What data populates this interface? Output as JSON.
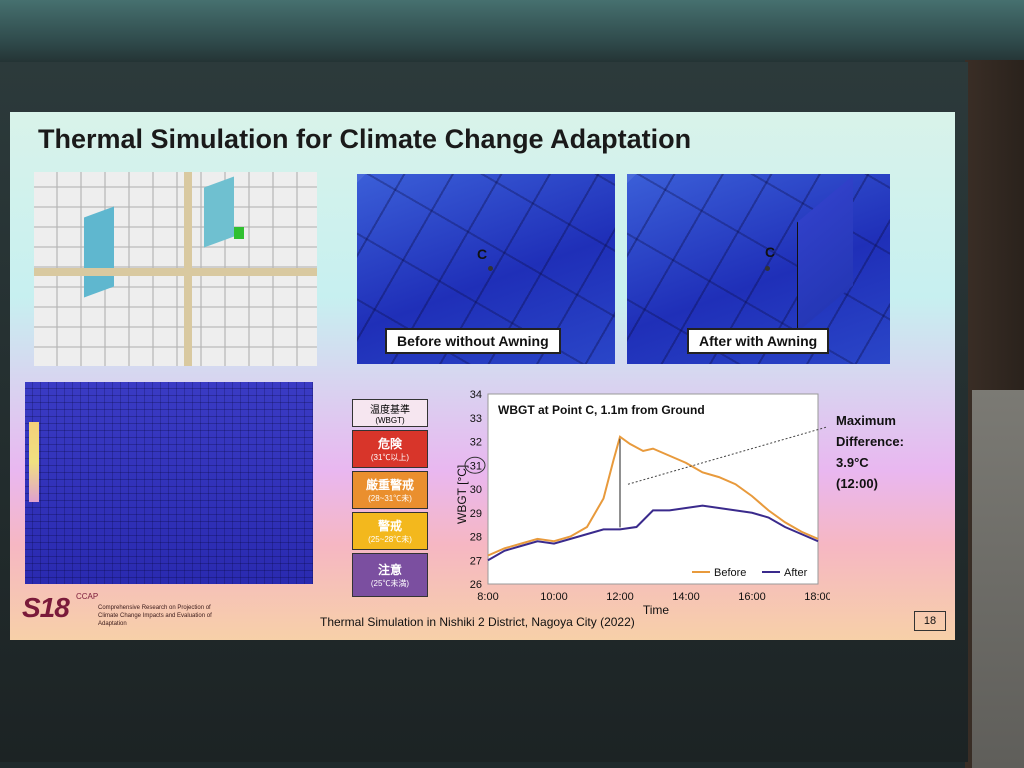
{
  "slide": {
    "title": "Thermal Simulation for Climate Change Adaptation",
    "footer": "Thermal Simulation in Nishiki 2 District, Nagoya City (2022)",
    "page_number": "18",
    "logo_text": "S18",
    "logo_side": "CCAP",
    "project_text": "Comprehensive Research on Projection of Climate Change Impacts and Evaluation of Adaptation"
  },
  "panels": {
    "before_caption": "Before without Awning",
    "after_caption": "After  with Awning",
    "point_label": "C"
  },
  "legend": {
    "header": "温度基準",
    "header_sub": "(WBGT)",
    "levels": [
      {
        "label": "危険",
        "range": "(31℃以上)",
        "color": "#d8352a"
      },
      {
        "label": "厳重警戒",
        "range": "(28~31℃未)",
        "color": "#ea8f2e"
      },
      {
        "label": "警戒",
        "range": "(25~28℃未)",
        "color": "#f3b81d"
      },
      {
        "label": "注意",
        "range": "(25℃未満)",
        "color": "#7b4fa0"
      }
    ]
  },
  "annotation": {
    "line1": "Maximum",
    "line2": "Difference:",
    "line3": "3.9°C",
    "line4": "(12:00)"
  },
  "chart_data": {
    "type": "line",
    "title": "WBGT at Point C, 1.1m from Ground",
    "xlabel": "Time",
    "ylabel": "WBGT [°C]",
    "xticks": [
      "8:00",
      "10:00",
      "12:00",
      "14:00",
      "16:00",
      "18:00"
    ],
    "yticks": [
      26,
      27,
      28,
      29,
      30,
      31,
      32,
      33,
      34
    ],
    "xlim": [
      8,
      18
    ],
    "ylim": [
      26,
      34
    ],
    "highlighted_ytick": 31,
    "legend_position": "bottom-right",
    "series": [
      {
        "name": "Before",
        "color": "#e89a3c",
        "x": [
          8,
          8.5,
          9,
          9.5,
          10,
          10.5,
          11,
          11.5,
          11.8,
          12,
          12.3,
          12.7,
          13,
          13.5,
          14,
          14.5,
          15,
          15.5,
          16,
          16.5,
          17,
          17.5,
          18
        ],
        "y": [
          27.2,
          27.5,
          27.7,
          27.9,
          27.8,
          28.0,
          28.4,
          29.6,
          31.2,
          32.2,
          31.9,
          31.6,
          31.7,
          31.4,
          31.1,
          30.7,
          30.5,
          30.2,
          29.7,
          29.1,
          28.6,
          28.2,
          27.9
        ]
      },
      {
        "name": "After",
        "color": "#3a2a8c",
        "x": [
          8,
          8.5,
          9,
          9.5,
          10,
          10.5,
          11,
          11.5,
          12,
          12.5,
          13,
          13.5,
          14,
          14.5,
          15,
          15.5,
          16,
          16.5,
          17,
          17.5,
          18
        ],
        "y": [
          27.0,
          27.4,
          27.6,
          27.8,
          27.7,
          27.9,
          28.1,
          28.3,
          28.3,
          28.4,
          29.1,
          29.1,
          29.2,
          29.3,
          29.2,
          29.1,
          29.0,
          28.8,
          28.4,
          28.1,
          27.8
        ]
      }
    ]
  }
}
